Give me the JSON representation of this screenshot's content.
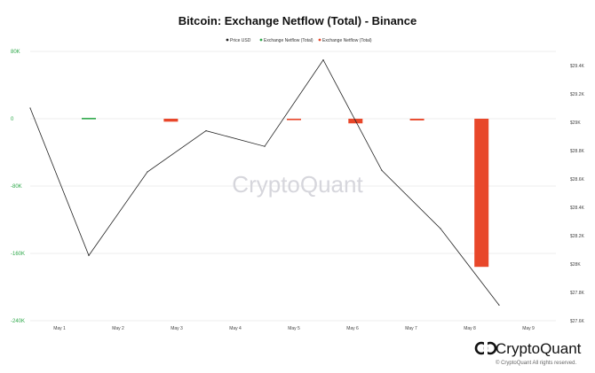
{
  "chart_data": {
    "type": "bar+line",
    "title": "Bitcoin: Exchange Netflow (Total) - Binance",
    "legend": [
      {
        "name": "Price USD",
        "color": "#222222"
      },
      {
        "name": "Exchange Netflow (Total)",
        "color": "#2ea84a"
      },
      {
        "name": "Exchange Netflow (Total)",
        "color": "#e8472a"
      }
    ],
    "legend_position": "top-center",
    "x_ticks": [
      "May 1",
      "May 2",
      "May 3",
      "May 4",
      "May 5",
      "May 6",
      "May 7",
      "May 8",
      "May 9"
    ],
    "left_axis": {
      "ticks": [
        {
          "v": 80000,
          "label": "80K"
        },
        {
          "v": 0,
          "label": "0"
        },
        {
          "v": -80000,
          "label": "-80K"
        },
        {
          "v": -160000,
          "label": "-160K"
        },
        {
          "v": -240000,
          "label": "-240K"
        }
      ],
      "range": [
        -240000,
        80000
      ],
      "color": "#2ea84a"
    },
    "right_axis": {
      "ticks": [
        {
          "v": 29400,
          "label": "$29.4K"
        },
        {
          "v": 29200,
          "label": "$29.2K"
        },
        {
          "v": 29000,
          "label": "$29K"
        },
        {
          "v": 28800,
          "label": "$28.8K"
        },
        {
          "v": 28600,
          "label": "$28.6K"
        },
        {
          "v": 28400,
          "label": "$28.4K"
        },
        {
          "v": 28200,
          "label": "$28.2K"
        },
        {
          "v": 28000,
          "label": "$28K"
        },
        {
          "v": 27800,
          "label": "$27.8K"
        },
        {
          "v": 27600,
          "label": "$27.6K"
        }
      ],
      "range": [
        27600,
        29500
      ]
    },
    "price_series": {
      "name": "Price USD",
      "color": "#222222",
      "points": [
        {
          "x": 0.0,
          "y": 29100
        },
        {
          "x": 1.0,
          "y": 28060
        },
        {
          "x": 2.0,
          "y": 28650
        },
        {
          "x": 3.0,
          "y": 28940
        },
        {
          "x": 4.0,
          "y": 28830
        },
        {
          "x": 5.0,
          "y": 29440
        },
        {
          "x": 6.0,
          "y": 28660
        },
        {
          "x": 7.0,
          "y": 28250
        },
        {
          "x": 8.0,
          "y": 27710
        }
      ]
    },
    "netflow_series": {
      "name": "Exchange Netflow (Total)",
      "positive_color": "#2ea84a",
      "negative_color": "#e8472a",
      "bars": [
        {
          "x": 1.0,
          "value": 1000
        },
        {
          "x": 2.4,
          "value": -3500
        },
        {
          "x": 4.5,
          "value": -1500
        },
        {
          "x": 5.55,
          "value": -5500
        },
        {
          "x": 6.6,
          "value": -2000
        },
        {
          "x": 7.7,
          "value": -176000
        }
      ]
    },
    "watermark": "CryptoQuant",
    "grid": true
  },
  "footer": {
    "brand": "CryptoQuant",
    "copyright": "© CryptoQuant All rights reserved."
  }
}
